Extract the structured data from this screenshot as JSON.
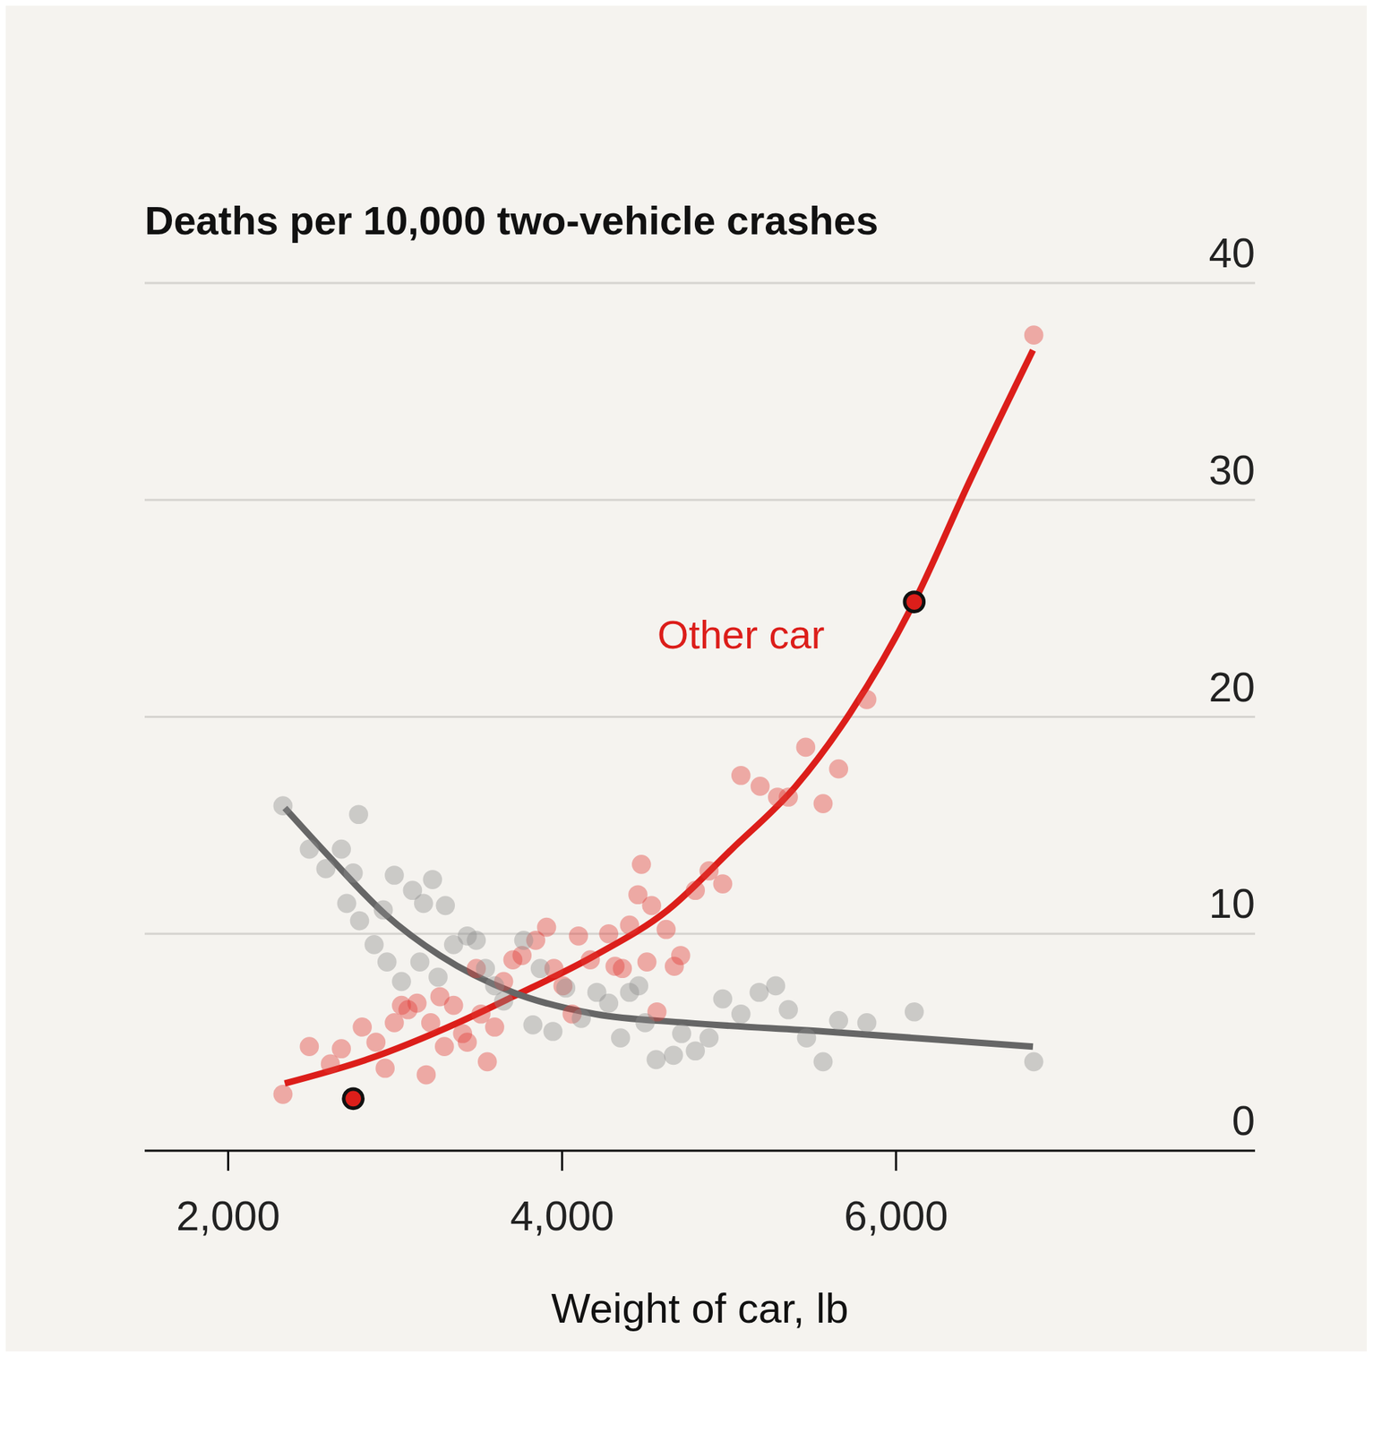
{
  "chart_data": {
    "type": "scatter",
    "title": "Deaths per 10,000 two-vehicle crashes",
    "x_label": "Weight of car, lb",
    "xlim": [
      1500,
      8150
    ],
    "xticks": [
      {
        "value": 2000,
        "label": "2,000"
      },
      {
        "value": 4000,
        "label": "4,000"
      },
      {
        "value": 6000,
        "label": "6,000"
      }
    ],
    "ylim": [
      0,
      40
    ],
    "yticks": [
      0,
      10,
      20,
      30,
      40
    ],
    "grid": true,
    "series": [
      {
        "type": "scatter",
        "color": "#e03a34",
        "marker": "circle",
        "x": [
          2328,
          2486,
          2612,
          2678,
          2803,
          2885,
          2940,
          2995,
          3038,
          3077,
          3131,
          3186,
          3213,
          3268,
          3295,
          3350,
          3404,
          3432,
          3486,
          3514,
          3552,
          3596,
          3650,
          3705,
          3760,
          3842,
          3907,
          3951,
          4005,
          4060,
          4098,
          4169,
          4279,
          4317,
          4361,
          4404,
          4454,
          4475,
          4508,
          4536,
          4568,
          4623,
          4672,
          4710,
          4798,
          4880,
          4962,
          5071,
          5186,
          5290,
          5355,
          5459,
          5563,
          5656,
          5825,
          6825
        ],
        "values": [
          2.6,
          4.8,
          4.0,
          4.7,
          5.7,
          5.0,
          3.8,
          5.9,
          6.7,
          6.5,
          6.8,
          3.5,
          5.9,
          7.1,
          4.8,
          6.7,
          5.4,
          5.0,
          8.4,
          6.3,
          4.1,
          5.7,
          7.8,
          8.8,
          9.0,
          9.7,
          10.3,
          8.4,
          7.6,
          6.3,
          9.9,
          8.8,
          10.0,
          8.5,
          8.4,
          10.4,
          11.8,
          13.2,
          8.7,
          11.3,
          6.4,
          10.2,
          8.5,
          9.0,
          12.0,
          12.9,
          12.3,
          17.3,
          16.8,
          16.3,
          16.3,
          18.6,
          16.0,
          17.6,
          20.8,
          37.6
        ]
      },
      {
        "type": "scatter",
        "color": "#8c8c8c",
        "marker": "circle",
        "x": [
          2328,
          2486,
          2585,
          2678,
          2749,
          2781,
          2710,
          2787,
          2874,
          2929,
          2951,
          2995,
          3038,
          3104,
          3148,
          3170,
          3224,
          3257,
          3301,
          3350,
          3432,
          3486,
          3541,
          3596,
          3650,
          3770,
          3825,
          3869,
          3945,
          4022,
          4115,
          4208,
          4279,
          4350,
          4404,
          4459,
          4497,
          4563,
          4667,
          4716,
          4798,
          4880,
          4962,
          5071,
          5180,
          5279,
          5355,
          5464,
          5563,
          5656,
          5825,
          6109,
          6825
        ],
        "values": [
          15.9,
          13.9,
          13.0,
          13.9,
          12.8,
          15.5,
          11.4,
          10.6,
          9.5,
          11.1,
          8.7,
          12.7,
          7.8,
          12.0,
          8.7,
          11.4,
          12.5,
          8.0,
          11.3,
          9.5,
          9.9,
          9.7,
          8.4,
          7.6,
          6.9,
          9.7,
          5.8,
          8.4,
          5.5,
          7.5,
          6.1,
          7.3,
          6.8,
          5.2,
          7.3,
          7.6,
          5.9,
          4.2,
          4.4,
          5.4,
          4.6,
          5.2,
          7.0,
          6.3,
          7.3,
          7.6,
          6.5,
          5.2,
          4.1,
          6.0,
          5.9,
          6.4,
          4.1
        ]
      },
      {
        "name": "Other car",
        "type": "line",
        "color": "#dc1e1a",
        "x": [
          2339,
          2830,
          3377,
          3705,
          4197,
          4634,
          5016,
          5399,
          5727,
          6109,
          6437,
          6820
        ],
        "values": [
          3.1,
          4.2,
          5.9,
          7.1,
          9.0,
          11.1,
          13.9,
          16.8,
          20.2,
          25.3,
          30.8,
          36.9
        ]
      },
      {
        "type": "line",
        "color": "#666666",
        "x": [
          2339,
          2612,
          2940,
          3268,
          3705,
          4197,
          4743,
          5563,
          6820
        ],
        "values": [
          15.8,
          13.5,
          10.9,
          9.0,
          7.3,
          6.3,
          5.9,
          5.5,
          4.8
        ]
      },
      {
        "type": "scatter",
        "color": "#dc1e1a",
        "marker": "outlined_circle",
        "x": [
          2749,
          6109
        ],
        "values": [
          2.4,
          25.3
        ]
      }
    ]
  }
}
